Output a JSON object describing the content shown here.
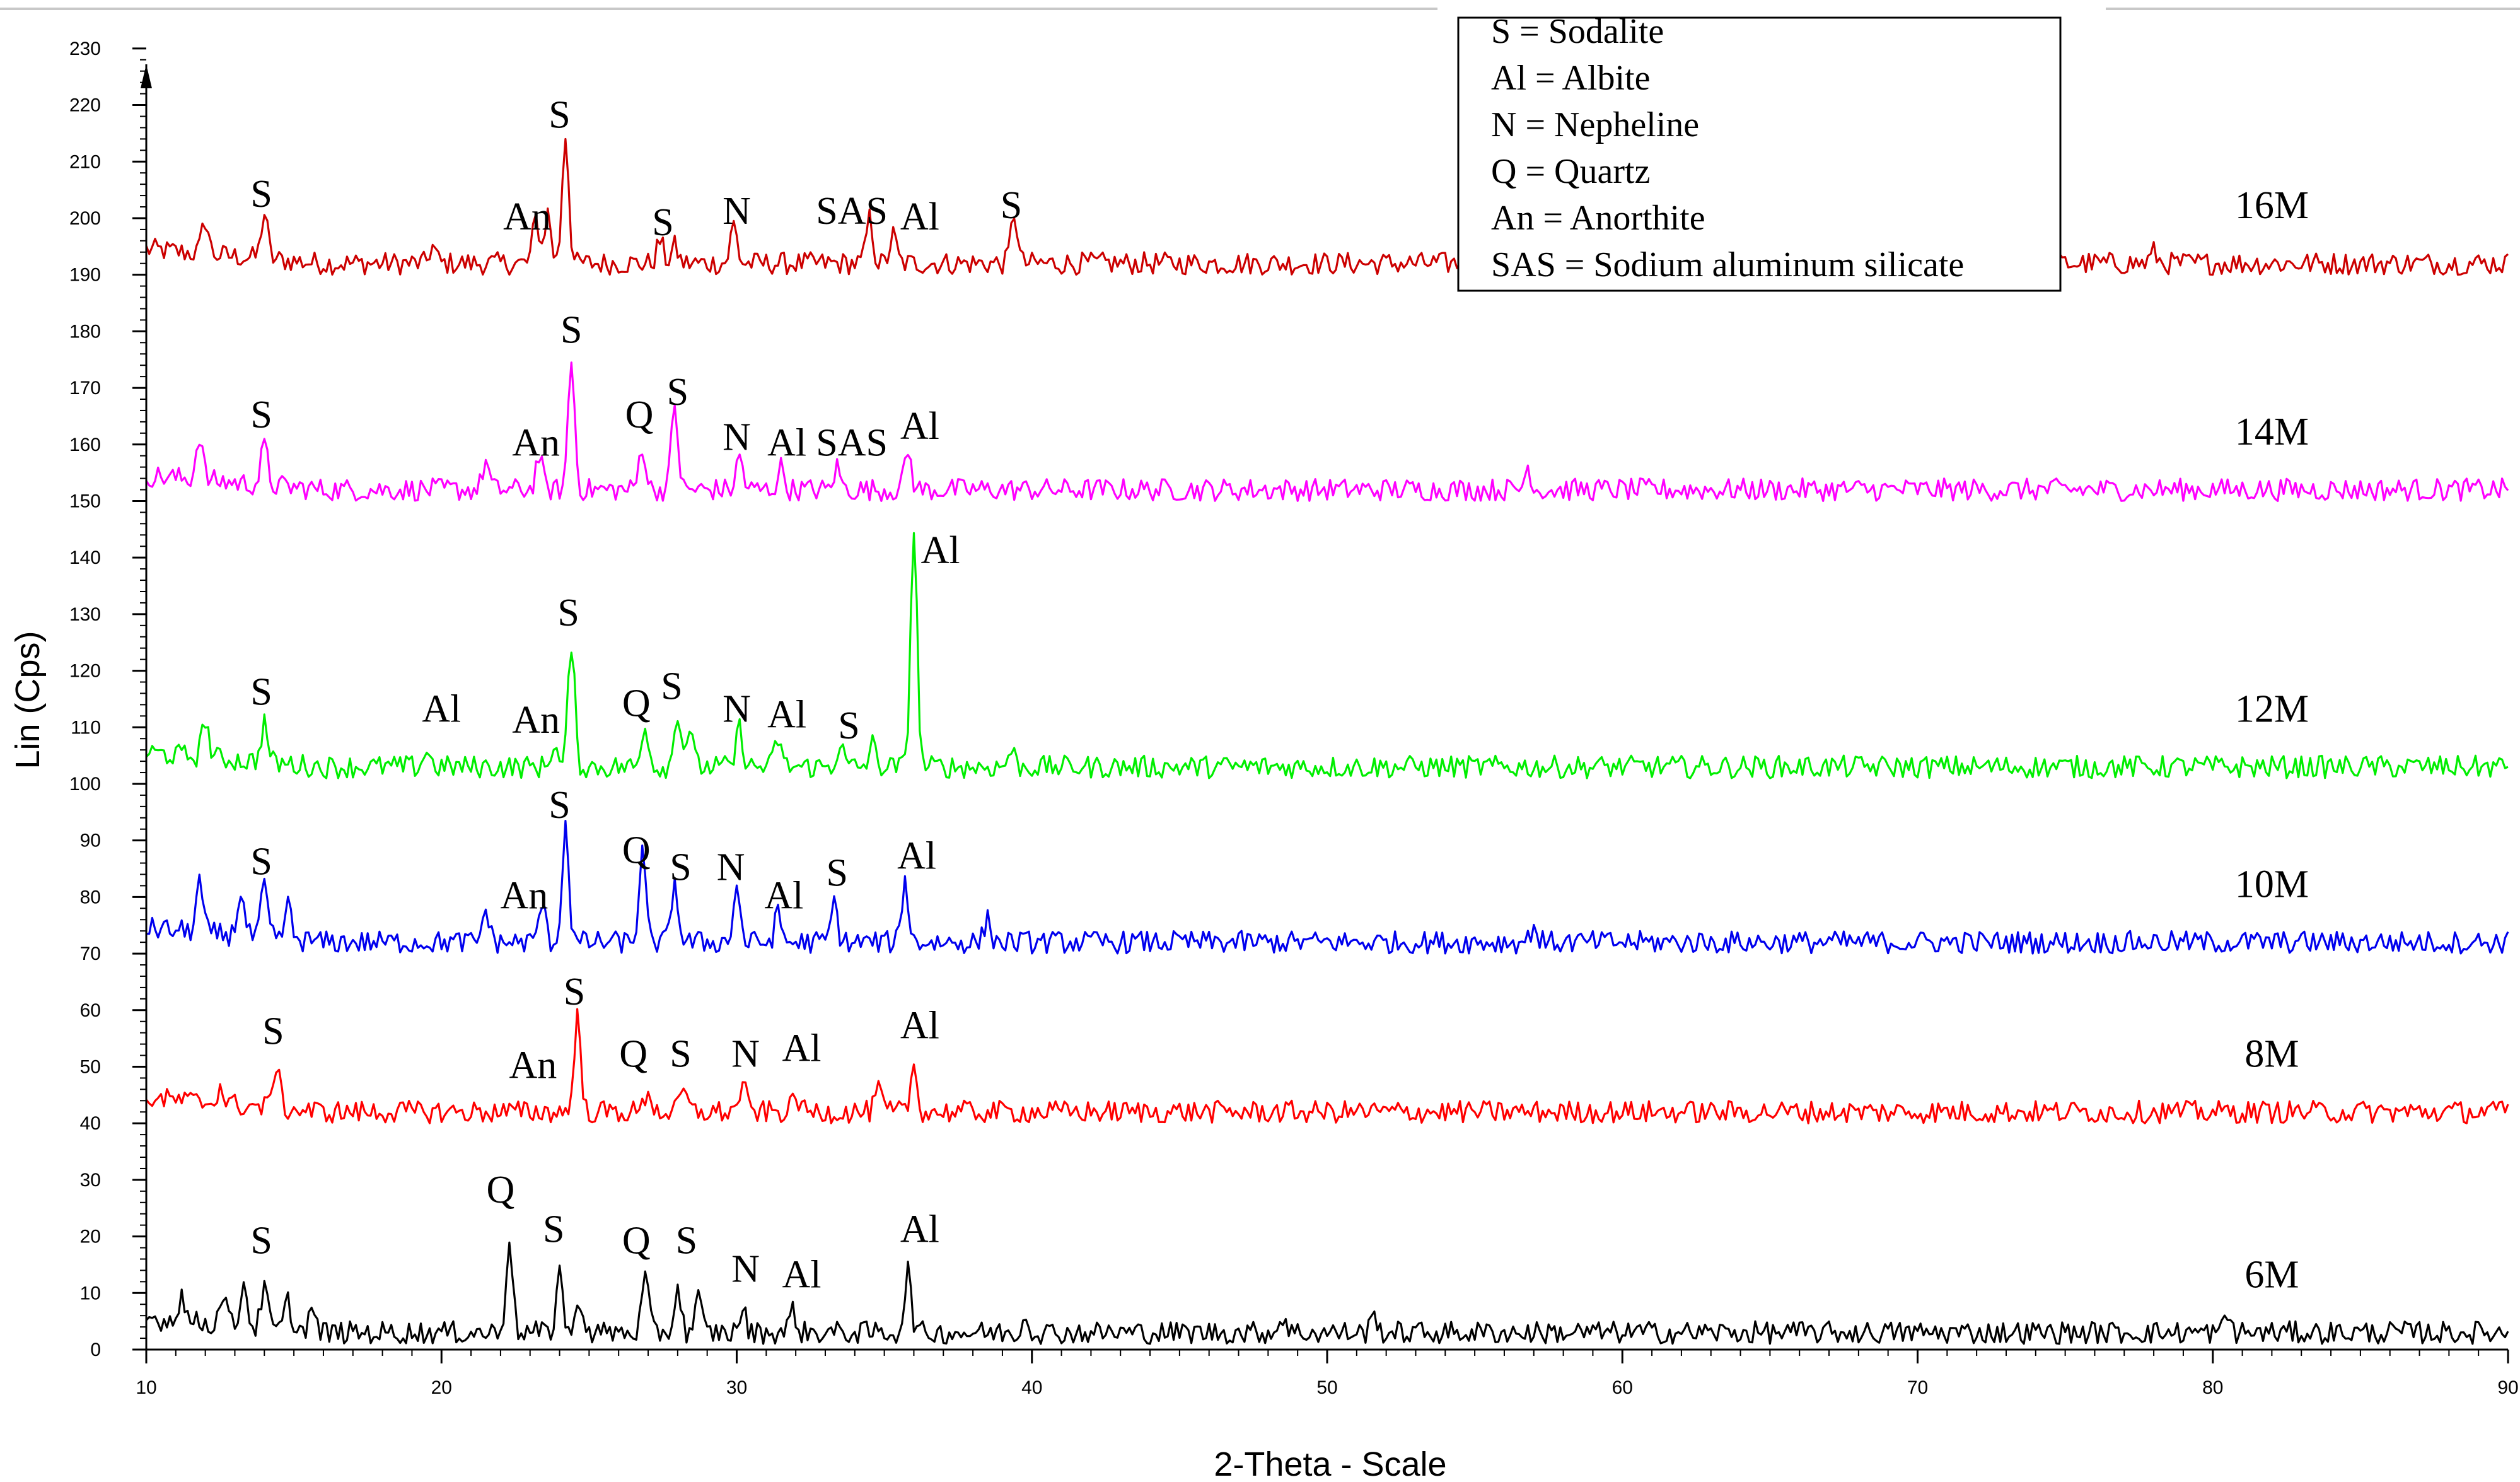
{
  "chart_data": {
    "type": "line",
    "title": "",
    "xlabel": "2-Theta - Scale",
    "ylabel": "Lin (Cps)",
    "xlim": [
      10,
      90
    ],
    "ylim": [
      0,
      235
    ],
    "x_ticks": [
      10,
      20,
      30,
      40,
      50,
      60,
      70,
      80,
      90
    ],
    "y_ticks": [
      0,
      10,
      20,
      30,
      40,
      50,
      60,
      70,
      80,
      90,
      100,
      110,
      120,
      130,
      140,
      150,
      160,
      170,
      180,
      190,
      200,
      210,
      220,
      230
    ],
    "grid": false,
    "legend_position": "top-center",
    "legend": [
      "S = Sodalite",
      "Al = Albite",
      "N = Nepheline",
      "Q = Quartz",
      "An = Anorthite",
      "SAS = Sodium aluminum silicate"
    ],
    "series": [
      {
        "name": "16M",
        "color": "#cc0000",
        "baseline": 192,
        "peaks": [
          {
            "x": 12.0,
            "h": 6
          },
          {
            "x": 14.0,
            "h": 8
          },
          {
            "x": 19.7,
            "h": 3
          },
          {
            "x": 23.2,
            "h": 8
          },
          {
            "x": 23.6,
            "h": 9
          },
          {
            "x": 24.2,
            "h": 23
          },
          {
            "x": 27.4,
            "h": 4
          },
          {
            "x": 27.9,
            "h": 3
          },
          {
            "x": 29.9,
            "h": 7
          },
          {
            "x": 34.5,
            "h": 8
          },
          {
            "x": 35.3,
            "h": 5
          },
          {
            "x": 39.4,
            "h": 9
          },
          {
            "x": 57.5,
            "h": 3
          },
          {
            "x": 78.0,
            "h": 2
          }
        ],
        "labels": [
          {
            "text": "S",
            "x": 13.9,
            "y": 202
          },
          {
            "text": "An",
            "x": 22.9,
            "y": 198
          },
          {
            "text": "S",
            "x": 24.0,
            "y": 216
          },
          {
            "text": "S",
            "x": 27.5,
            "y": 197
          },
          {
            "text": "N",
            "x": 30.0,
            "y": 199
          },
          {
            "text": "SAS",
            "x": 33.9,
            "y": 199
          },
          {
            "text": "Al",
            "x": 36.2,
            "y": 198
          },
          {
            "text": "S",
            "x": 39.3,
            "y": 200
          }
        ]
      },
      {
        "name": "14M",
        "color": "#ff00ff",
        "baseline": 152,
        "peaks": [
          {
            "x": 11.8,
            "h": 8
          },
          {
            "x": 14.0,
            "h": 7
          },
          {
            "x": 21.5,
            "h": 5
          },
          {
            "x": 23.3,
            "h": 6
          },
          {
            "x": 24.4,
            "h": 23
          },
          {
            "x": 26.8,
            "h": 8
          },
          {
            "x": 27.9,
            "h": 15
          },
          {
            "x": 30.1,
            "h": 6
          },
          {
            "x": 31.5,
            "h": 4
          },
          {
            "x": 33.4,
            "h": 4
          },
          {
            "x": 35.8,
            "h": 7
          },
          {
            "x": 56.8,
            "h": 4
          }
        ],
        "labels": [
          {
            "text": "S",
            "x": 13.9,
            "y": 163
          },
          {
            "text": "An",
            "x": 23.2,
            "y": 158
          },
          {
            "text": "S",
            "x": 24.4,
            "y": 178
          },
          {
            "text": "Q",
            "x": 26.7,
            "y": 163
          },
          {
            "text": "S",
            "x": 28.0,
            "y": 167
          },
          {
            "text": "N",
            "x": 30.0,
            "y": 159
          },
          {
            "text": "Al",
            "x": 31.7,
            "y": 158
          },
          {
            "text": "SAS",
            "x": 33.9,
            "y": 158
          },
          {
            "text": "Al",
            "x": 36.2,
            "y": 161
          }
        ]
      },
      {
        "name": "12M",
        "color": "#00ee00",
        "baseline": 103,
        "peaks": [
          {
            "x": 12.0,
            "h": 7
          },
          {
            "x": 14.0,
            "h": 7
          },
          {
            "x": 19.5,
            "h": 3
          },
          {
            "x": 23.8,
            "h": 4
          },
          {
            "x": 24.4,
            "h": 22
          },
          {
            "x": 26.9,
            "h": 8
          },
          {
            "x": 28.0,
            "h": 10
          },
          {
            "x": 28.4,
            "h": 7
          },
          {
            "x": 30.1,
            "h": 7
          },
          {
            "x": 31.4,
            "h": 5
          },
          {
            "x": 33.5,
            "h": 4
          },
          {
            "x": 34.6,
            "h": 4
          },
          {
            "x": 36.0,
            "h": 42
          },
          {
            "x": 39.3,
            "h": 3
          }
        ],
        "labels": [
          {
            "text": "S",
            "x": 13.9,
            "y": 114
          },
          {
            "text": "Al",
            "x": 20.0,
            "y": 111
          },
          {
            "text": "An",
            "x": 23.2,
            "y": 109
          },
          {
            "text": "S",
            "x": 24.3,
            "y": 128
          },
          {
            "text": "Q",
            "x": 26.6,
            "y": 112
          },
          {
            "text": "S",
            "x": 27.8,
            "y": 115
          },
          {
            "text": "N",
            "x": 30.0,
            "y": 111
          },
          {
            "text": "Al",
            "x": 31.7,
            "y": 110
          },
          {
            "text": "S",
            "x": 33.8,
            "y": 108
          },
          {
            "text": "Al",
            "x": 36.9,
            "y": 139
          }
        ]
      },
      {
        "name": "10M",
        "color": "#0000ee",
        "baseline": 72,
        "peaks": [
          {
            "x": 11.8,
            "h": 9
          },
          {
            "x": 13.2,
            "h": 8
          },
          {
            "x": 14.0,
            "h": 9
          },
          {
            "x": 14.8,
            "h": 6
          },
          {
            "x": 21.5,
            "h": 6
          },
          {
            "x": 23.4,
            "h": 7
          },
          {
            "x": 24.2,
            "h": 21
          },
          {
            "x": 26.8,
            "h": 16
          },
          {
            "x": 27.9,
            "h": 11
          },
          {
            "x": 30.0,
            "h": 10
          },
          {
            "x": 31.4,
            "h": 5
          },
          {
            "x": 33.3,
            "h": 7
          },
          {
            "x": 35.7,
            "h": 11
          },
          {
            "x": 38.5,
            "h": 4
          },
          {
            "x": 57.0,
            "h": 3
          }
        ],
        "labels": [
          {
            "text": "S",
            "x": 13.9,
            "y": 84
          },
          {
            "text": "An",
            "x": 22.8,
            "y": 78
          },
          {
            "text": "S",
            "x": 24.0,
            "y": 94
          },
          {
            "text": "Q",
            "x": 26.6,
            "y": 86
          },
          {
            "text": "S",
            "x": 28.1,
            "y": 83
          },
          {
            "text": "N",
            "x": 29.8,
            "y": 83
          },
          {
            "text": "Al",
            "x": 31.6,
            "y": 78
          },
          {
            "text": "S",
            "x": 33.4,
            "y": 82
          },
          {
            "text": "Al",
            "x": 36.1,
            "y": 85
          }
        ]
      },
      {
        "name": "8M",
        "color": "#ff0000",
        "baseline": 42,
        "peaks": [
          {
            "x": 12.5,
            "h": 3
          },
          {
            "x": 14.4,
            "h": 8
          },
          {
            "x": 24.6,
            "h": 17
          },
          {
            "x": 27.0,
            "h": 4
          },
          {
            "x": 28.2,
            "h": 4
          },
          {
            "x": 30.2,
            "h": 5
          },
          {
            "x": 32.0,
            "h": 3
          },
          {
            "x": 34.8,
            "h": 4
          },
          {
            "x": 36.0,
            "h": 8
          }
        ],
        "labels": [
          {
            "text": "S",
            "x": 14.3,
            "y": 54
          },
          {
            "text": "An",
            "x": 23.1,
            "y": 48
          },
          {
            "text": "S",
            "x": 24.5,
            "y": 61
          },
          {
            "text": "Q",
            "x": 26.5,
            "y": 50
          },
          {
            "text": "S",
            "x": 28.1,
            "y": 50
          },
          {
            "text": "N",
            "x": 30.3,
            "y": 50
          },
          {
            "text": "Al",
            "x": 32.2,
            "y": 51
          },
          {
            "text": "Al",
            "x": 36.2,
            "y": 55
          }
        ]
      },
      {
        "name": "6M",
        "color": "#000000",
        "baseline": 3,
        "peaks": [
          {
            "x": 11.2,
            "h": 5
          },
          {
            "x": 12.6,
            "h": 6
          },
          {
            "x": 13.3,
            "h": 8
          },
          {
            "x": 14.0,
            "h": 7
          },
          {
            "x": 14.8,
            "h": 5
          },
          {
            "x": 15.6,
            "h": 4
          },
          {
            "x": 22.3,
            "h": 17
          },
          {
            "x": 24.0,
            "h": 11
          },
          {
            "x": 24.7,
            "h": 6
          },
          {
            "x": 26.9,
            "h": 10
          },
          {
            "x": 28.0,
            "h": 8
          },
          {
            "x": 28.7,
            "h": 6
          },
          {
            "x": 30.2,
            "h": 4
          },
          {
            "x": 31.9,
            "h": 4
          },
          {
            "x": 35.8,
            "h": 11
          },
          {
            "x": 39.8,
            "h": 3
          },
          {
            "x": 48.5,
            "h": 3
          },
          {
            "x": 51.6,
            "h": 3
          },
          {
            "x": 80.5,
            "h": 3
          }
        ],
        "labels": [
          {
            "text": "S",
            "x": 13.9,
            "y": 17
          },
          {
            "text": "Q",
            "x": 22.0,
            "y": 26
          },
          {
            "text": "S",
            "x": 23.8,
            "y": 19
          },
          {
            "text": "Q",
            "x": 26.6,
            "y": 17
          },
          {
            "text": "S",
            "x": 28.3,
            "y": 17
          },
          {
            "text": "N",
            "x": 30.3,
            "y": 12
          },
          {
            "text": "Al",
            "x": 32.2,
            "y": 11
          },
          {
            "text": "Al",
            "x": 36.2,
            "y": 19
          }
        ]
      }
    ]
  }
}
